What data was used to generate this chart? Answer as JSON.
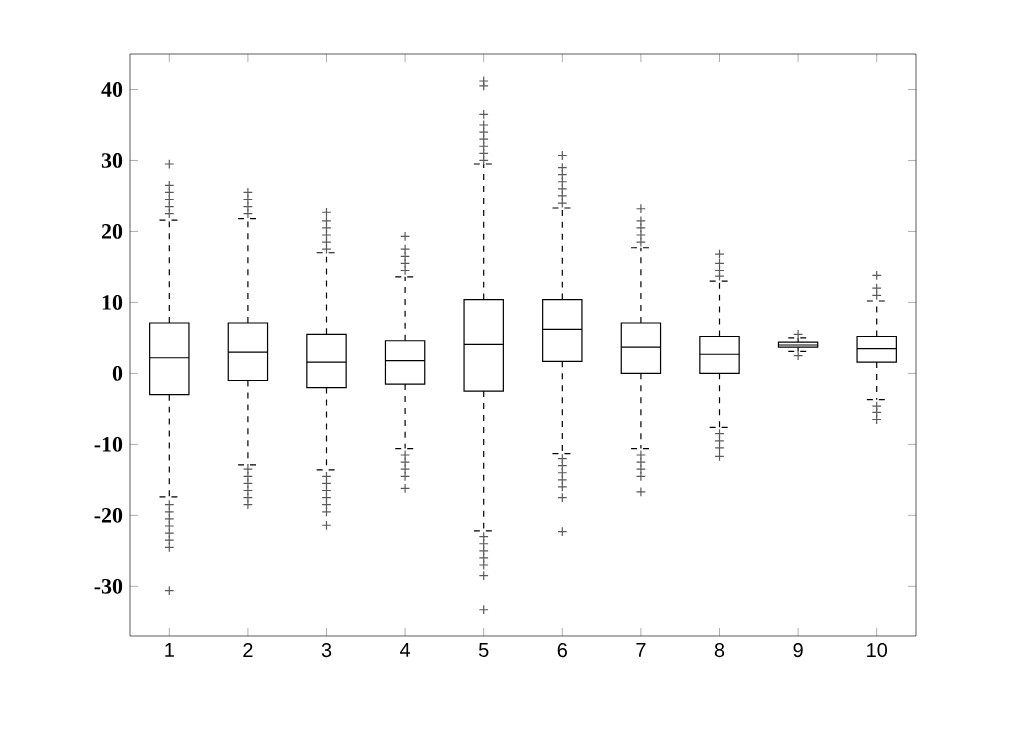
{
  "chart_data": {
    "type": "box",
    "categories": [
      "1",
      "2",
      "3",
      "4",
      "5",
      "6",
      "7",
      "8",
      "9",
      "10"
    ],
    "ylim": [
      -37,
      45
    ],
    "yticks": [
      -30,
      -20,
      -10,
      0,
      10,
      20,
      30,
      40
    ],
    "grid": false,
    "marker": "cross",
    "line_style": "dashed",
    "series": [
      {
        "color": "#000000",
        "boxes": [
          {
            "low": -17.4,
            "q1": -3,
            "median": 2.2,
            "q3": 7.1,
            "high": 21.6,
            "outliers": [
              22.5,
              23.5,
              24.5,
              25.5,
              26.5,
              29.5,
              -18.5,
              -19.5,
              -20.5,
              -21.5,
              -22.5,
              -23.5,
              -24.5,
              -30.6
            ]
          },
          {
            "low": -12.9,
            "q1": -1.0,
            "median": 3.0,
            "q3": 7.1,
            "high": 21.8,
            "outliers": [
              22.5,
              23.5,
              24.5,
              25.5,
              -13.5,
              -14.5,
              -15.5,
              -16.5,
              -17.5,
              -18.5
            ]
          },
          {
            "low": -13.6,
            "q1": -2.0,
            "median": 1.6,
            "q3": 5.5,
            "high": 17.0,
            "outliers": [
              17.5,
              18.5,
              19.5,
              20.5,
              21.5,
              22.7,
              -14.5,
              -15.5,
              -16.5,
              -17.5,
              -18.5,
              -19.5,
              -21.4
            ]
          },
          {
            "low": -10.6,
            "q1": -1.5,
            "median": 1.8,
            "q3": 4.6,
            "high": 13.6,
            "outliers": [
              14.5,
              15.5,
              16.5,
              17.5,
              19.3,
              -11.5,
              -12.5,
              -13.5,
              -14.5,
              -16.2
            ]
          },
          {
            "low": -22.2,
            "q1": -2.5,
            "median": 4.1,
            "q3": 10.4,
            "high": 29.5,
            "outliers": [
              30,
              31,
              32,
              33,
              34,
              35,
              36.5,
              40.5,
              41.2,
              -23,
              -24,
              -25,
              -26,
              -27,
              -28.5,
              -33.3
            ]
          },
          {
            "low": -11.3,
            "q1": 1.7,
            "median": 6.2,
            "q3": 10.4,
            "high": 23.3,
            "outliers": [
              24,
              25,
              26,
              27,
              28,
              29,
              30.7,
              -12,
              -13,
              -14,
              -15,
              -16,
              -17.5,
              -22.3
            ]
          },
          {
            "low": -10.6,
            "q1": 0,
            "median": 3.7,
            "q3": 7.1,
            "high": 17.7,
            "outliers": [
              18.5,
              19.5,
              20.5,
              21.5,
              23.2,
              -11.5,
              -12.5,
              -13.5,
              -14.5,
              -16.7
            ]
          },
          {
            "low": -7.6,
            "q1": 0,
            "median": 2.7,
            "q3": 5.2,
            "high": 13.0,
            "outliers": [
              13.7,
              14.5,
              15.5,
              16.8,
              -8.5,
              -9.5,
              -10.5,
              -11.7
            ]
          },
          {
            "low": 3.1,
            "q1": 3.7,
            "median": 4.0,
            "q3": 4.4,
            "high": 5.0,
            "outliers": [
              5.5,
              2.5
            ]
          },
          {
            "low": -3.7,
            "q1": 1.6,
            "median": 3.5,
            "q3": 5.2,
            "high": 10.2,
            "outliers": [
              11,
              12,
              13.8,
              -4.6,
              -5.5,
              -6.5
            ]
          }
        ]
      }
    ]
  }
}
